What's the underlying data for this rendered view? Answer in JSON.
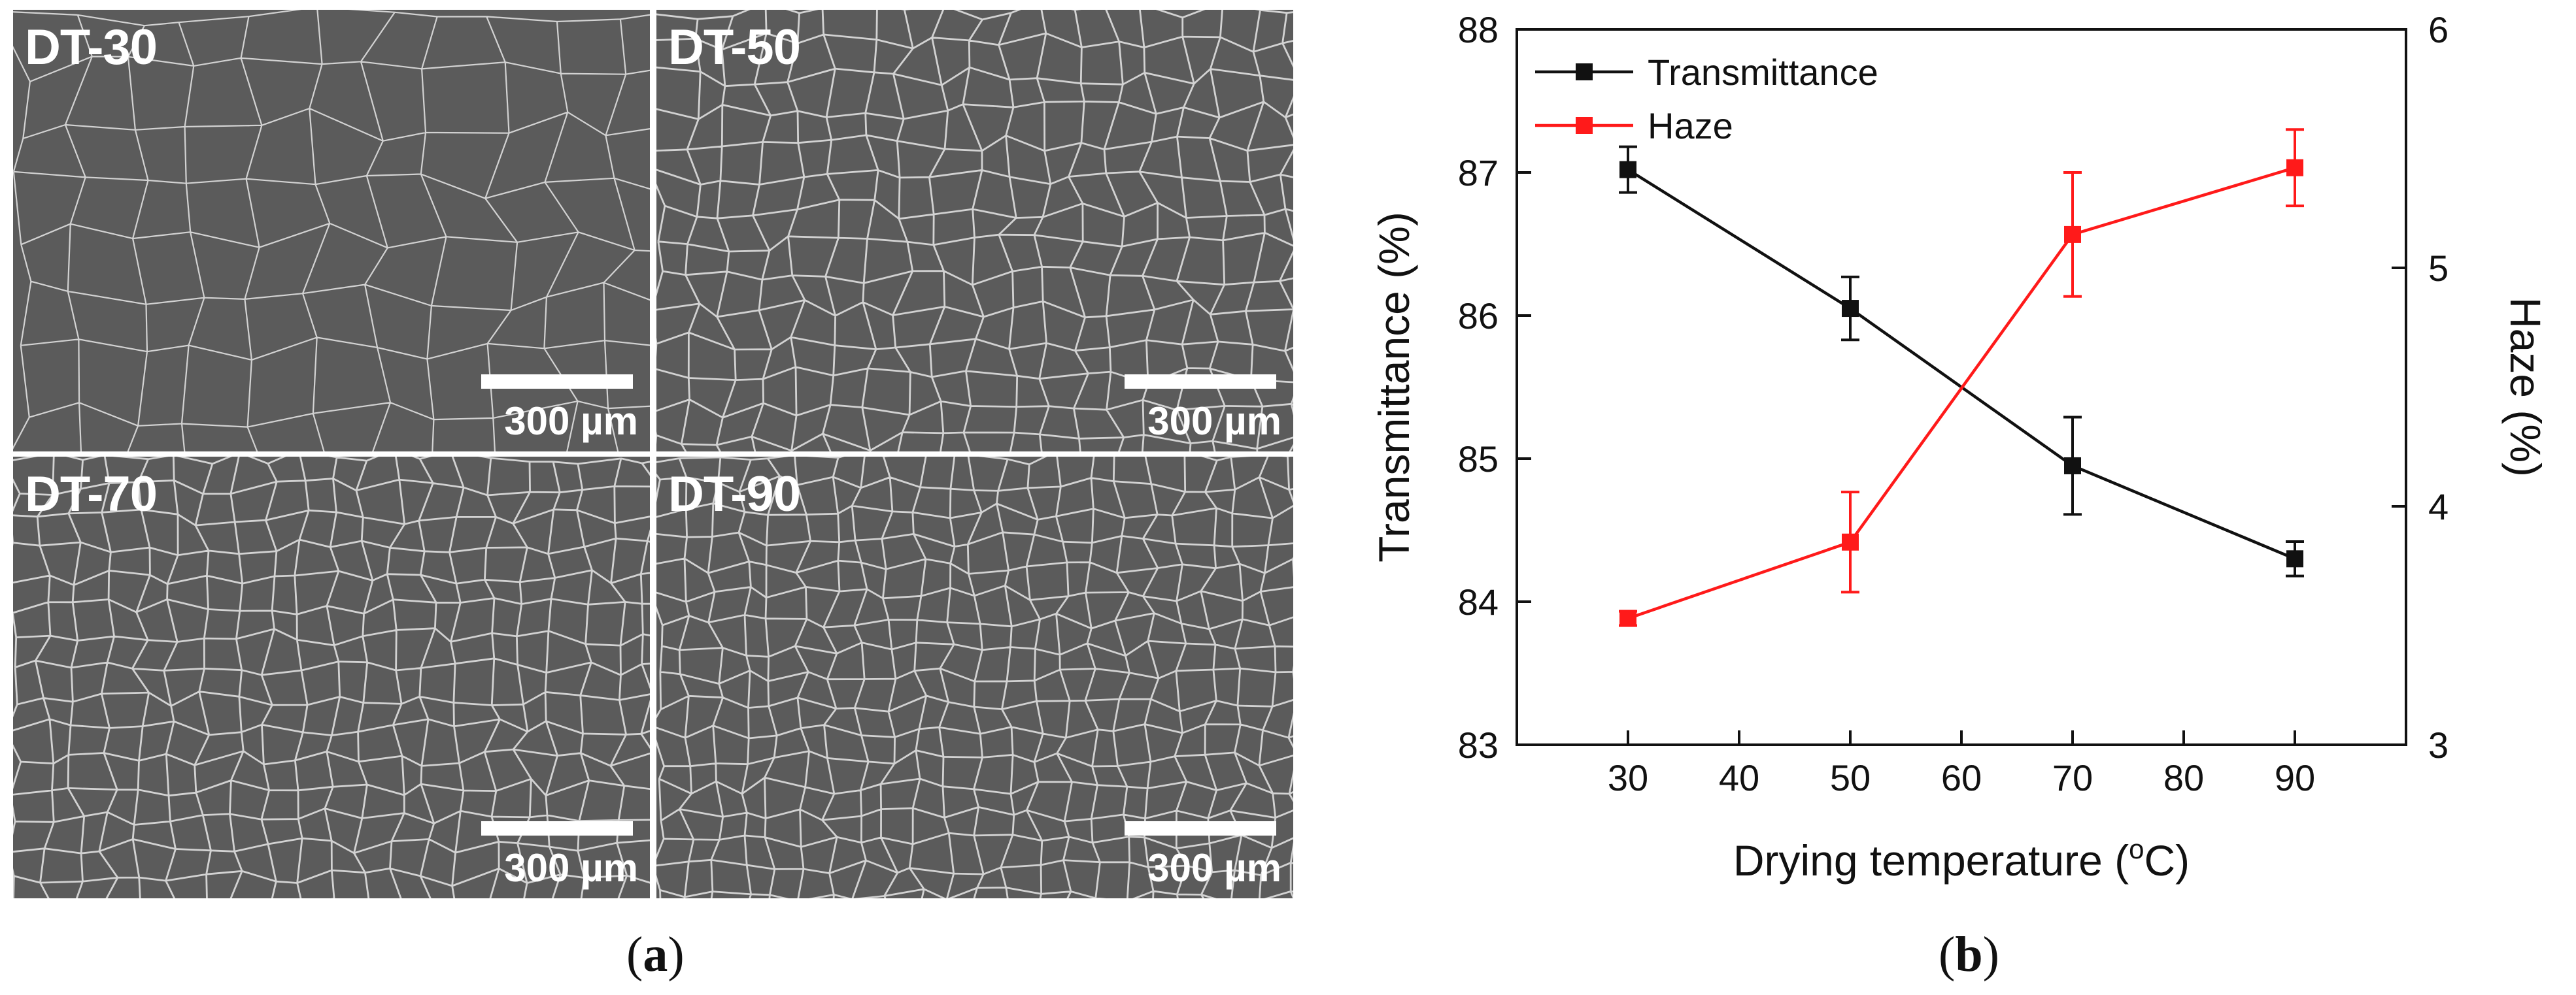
{
  "panels": [
    {
      "label": "DT-30",
      "scale": "300 µm",
      "cells": 11
    },
    {
      "label": "DT-50",
      "scale": "300 µm",
      "cells": 19
    },
    {
      "label": "DT-70",
      "scale": "300 µm",
      "cells": 21
    },
    {
      "label": "DT-90",
      "scale": "300 µm",
      "cells": 23
    }
  ],
  "captions": {
    "a": "(a)",
    "a_paren_open": "(",
    "a_letter": "a",
    "a_paren_close": ")",
    "b_paren_open": "(",
    "b_letter": "b",
    "b_paren_close": ")"
  },
  "colors": {
    "transmittance": "#111111",
    "haze": "#ff1a1a",
    "micrograph_bg": "#5b5b5b",
    "cell_wall": "#e8e8e8"
  },
  "chart_data": {
    "type": "line",
    "x": [
      30,
      50,
      70,
      90
    ],
    "xlabel_main": "Drying temperature (",
    "xlabel_sup": "o",
    "xlabel_end": "C)",
    "xlim": [
      20,
      100
    ],
    "xticks": [
      30,
      40,
      50,
      60,
      70,
      80,
      90
    ],
    "ylabel_left": "Transmittance (%)",
    "ylim_left": [
      83,
      88
    ],
    "yticks_left": [
      83,
      84,
      85,
      86,
      87,
      88
    ],
    "ylabel_right": "Haze (%)",
    "ylim_right": [
      3,
      6
    ],
    "yticks_right": [
      3,
      4,
      5,
      6
    ],
    "legend_position": "top-left",
    "series": [
      {
        "name": "Transmittance",
        "axis": "left",
        "values": [
          87.02,
          86.05,
          84.95,
          84.3
        ],
        "errors": [
          0.16,
          0.22,
          0.34,
          0.12
        ]
      },
      {
        "name": "Haze",
        "axis": "right",
        "values": [
          3.53,
          3.85,
          5.14,
          5.42
        ],
        "errors": [
          0.03,
          0.21,
          0.26,
          0.16
        ]
      }
    ]
  }
}
